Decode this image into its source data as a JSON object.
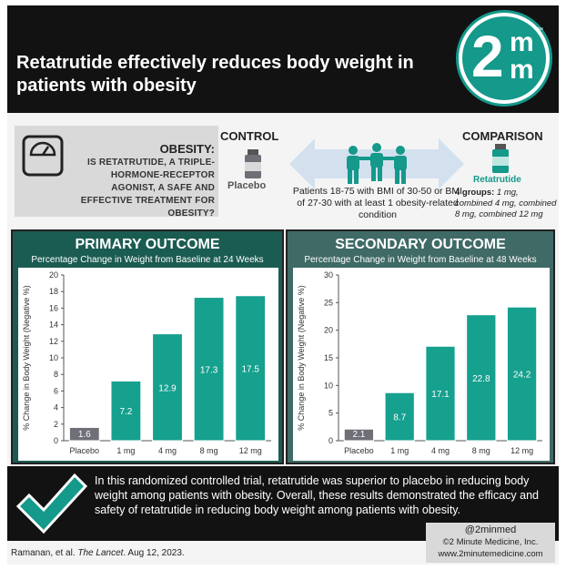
{
  "header": {
    "title": "Retatrutide effectively reduces body weight in patients with obesity"
  },
  "logo": {
    "text": "2mm",
    "tm": "™"
  },
  "design": {
    "question_title": "OBESITY:",
    "question_text": "IS RETATRUTIDE, A TRIPLE-HORMONE-RECEPTOR AGONIST, A SAFE AND EFFECTIVE TREATMENT FOR OBESITY?",
    "control_label": "CONTROL",
    "placebo_label": "Placebo",
    "patients_text": "Patients 18-75 with BMI of 30-50 or BMI of 27-30 with at least 1 obesity-related condition",
    "comparison_label": "COMPARISON",
    "retatrutide_label": "Retatrutide",
    "groups_bold": "4 groups:",
    "groups_italic": " 1 mg, combined 4 mg, combined 8 mg, combined 12 mg"
  },
  "chart_data": [
    {
      "type": "bar",
      "title": "PRIMARY OUTCOME",
      "subtitle": "Percentage Change in Weight from Baseline at 24 Weeks",
      "ylabel": "% Change in Body Weight (Negative %)",
      "categories": [
        "Placebo",
        "1 mg",
        "4 mg",
        "8 mg",
        "12 mg"
      ],
      "values": [
        1.6,
        7.2,
        12.9,
        17.3,
        17.5
      ],
      "ylim": [
        0,
        20
      ],
      "yticks": [
        0,
        2,
        4,
        6,
        8,
        10,
        12,
        14,
        16,
        18,
        20
      ],
      "grid": false,
      "colors": {
        "placebo": "#6f6f78",
        "drug": "#16a08e"
      }
    },
    {
      "type": "bar",
      "title": "SECONDARY OUTCOME",
      "subtitle": "Percentage Change in Weight from Baseline at 48 Weeks",
      "ylabel": "% Change in Body Weight (Negative %)",
      "categories": [
        "Placebo",
        "1 mg",
        "4 mg",
        "8 mg",
        "12 mg"
      ],
      "values": [
        2.1,
        8.7,
        17.1,
        22.8,
        24.2
      ],
      "ylim": [
        0,
        30
      ],
      "yticks": [
        0,
        5,
        10,
        15,
        20,
        25,
        30
      ],
      "grid": false,
      "colors": {
        "placebo": "#6f6f78",
        "drug": "#16a08e"
      }
    }
  ],
  "conclusion": {
    "text": "In this randomized controlled trial, retatrutide was superior to placebo in reducing body weight among patients with obesity. Overall, these results demonstrated the efficacy and safety of retatrutide in reducing body weight among patients with obesity."
  },
  "footer": {
    "citation_authors": "Ramanan, et al. ",
    "citation_journal": "The Lancet",
    "citation_date": ". Aug 12, 2023.",
    "handle": "@2minmed",
    "copyright": "©2 Minute Medicine, Inc.",
    "website": "www.2minutemedicine.com"
  },
  "colors": {
    "accent": "#14998b",
    "dark": "#121212",
    "primary_panel": "#1b5c52",
    "secondary_panel": "#3f6a66"
  }
}
